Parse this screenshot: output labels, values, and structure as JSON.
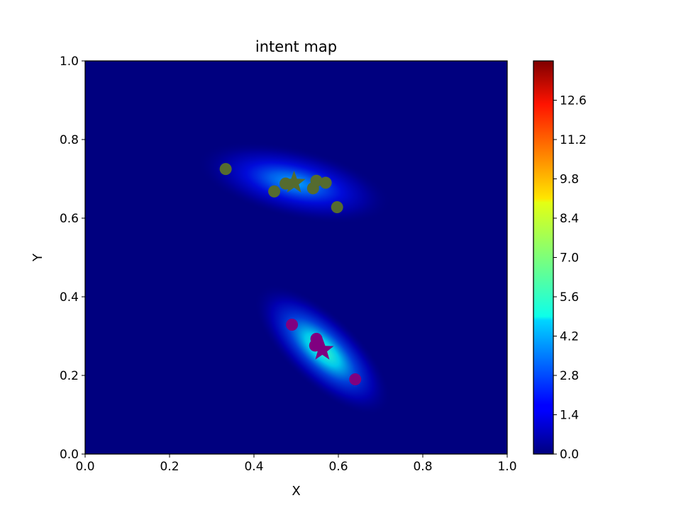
{
  "chart_data": {
    "type": "heatmap",
    "title": "intent map",
    "xlabel": "X",
    "ylabel": "Y",
    "xlim": [
      0.0,
      1.0
    ],
    "ylim": [
      0.0,
      1.0
    ],
    "x_ticks": [
      "0.0",
      "0.2",
      "0.4",
      "0.6",
      "0.8",
      "1.0"
    ],
    "y_ticks": [
      "0.0",
      "0.2",
      "0.4",
      "0.6",
      "0.8",
      "1.0"
    ],
    "colormap": "jet",
    "colorbar": {
      "range": [
        0.0,
        14.0
      ],
      "ticks": [
        "0.0",
        "1.4",
        "2.8",
        "4.2",
        "5.6",
        "7.0",
        "8.4",
        "9.8",
        "11.2",
        "12.6"
      ]
    },
    "grid": false,
    "clusters": [
      {
        "color": "#556b2f",
        "center": {
          "x": 0.495,
          "y": 0.69
        },
        "peak_density": 2.5,
        "points": [
          {
            "x": 0.333,
            "y": 0.725
          },
          {
            "x": 0.448,
            "y": 0.668
          },
          {
            "x": 0.475,
            "y": 0.688
          },
          {
            "x": 0.54,
            "y": 0.676
          },
          {
            "x": 0.548,
            "y": 0.695
          },
          {
            "x": 0.57,
            "y": 0.69
          },
          {
            "x": 0.597,
            "y": 0.628
          }
        ]
      },
      {
        "color": "#800080",
        "center": {
          "x": 0.562,
          "y": 0.265
        },
        "peak_density": 4.6,
        "points": [
          {
            "x": 0.49,
            "y": 0.329
          },
          {
            "x": 0.548,
            "y": 0.293
          },
          {
            "x": 0.545,
            "y": 0.276
          },
          {
            "x": 0.64,
            "y": 0.19
          }
        ]
      }
    ]
  }
}
